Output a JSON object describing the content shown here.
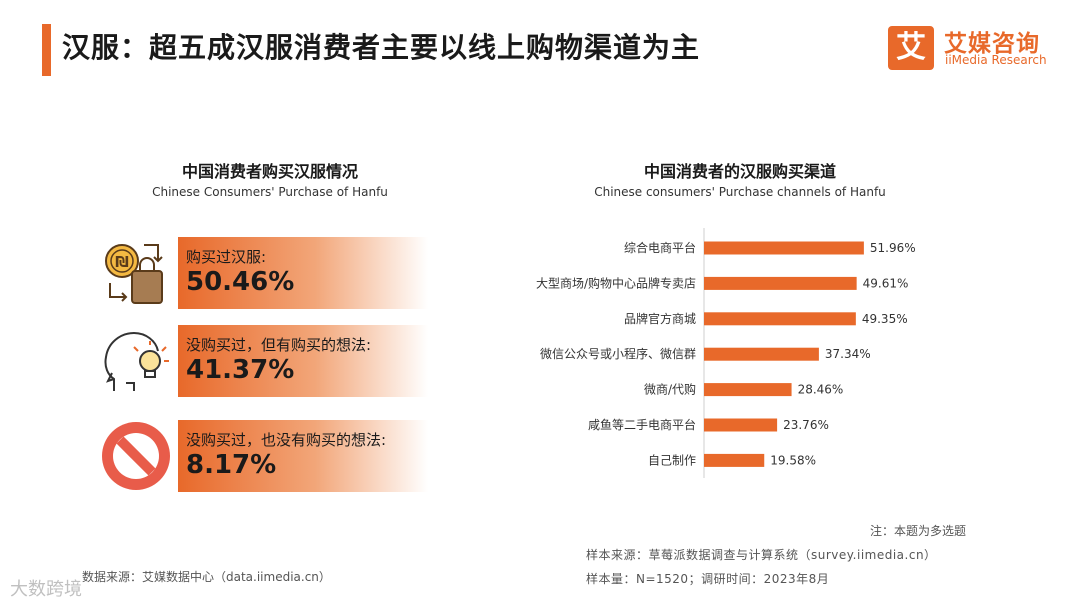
{
  "page": {
    "title": "汉服：超五成汉服消费者主要以线上购物渠道为主"
  },
  "logo": {
    "mark": "艾",
    "cn": "艾媒咨询",
    "en": "iiMedia Research"
  },
  "left_panel": {
    "title": "中国消费者购买汉服情况",
    "subtitle": "Chinese Consumers' Purchase of Hanfu",
    "stats": [
      {
        "label": "购买过汉服:",
        "value": "50.46%",
        "icon": "coin-shopping-bag-icon"
      },
      {
        "label": "没购买过，但有购买的想法:",
        "value": "41.37%",
        "icon": "head-lightbulb-icon"
      },
      {
        "label": "没购买过，也没有购买的想法:",
        "value": "8.17%",
        "icon": "prohibited-icon"
      }
    ]
  },
  "right_panel": {
    "title": "中国消费者的汉服购买渠道",
    "subtitle": "Chinese consumers' Purchase channels of Hanfu"
  },
  "chart_data": {
    "type": "bar",
    "orientation": "horizontal",
    "title": "中国消费者的汉服购买渠道",
    "categories": [
      "综合电商平台",
      "大型商场/购物中心品牌专卖店",
      "品牌官方商城",
      "微信公众号或小程序、微信群",
      "微商/代购",
      "咸鱼等二手电商平台",
      "自己制作"
    ],
    "values": [
      51.96,
      49.61,
      49.35,
      37.34,
      28.46,
      23.76,
      19.58
    ],
    "value_labels": [
      "51.96%",
      "49.61%",
      "49.35%",
      "37.34%",
      "28.46%",
      "23.76%",
      "19.58%"
    ],
    "unit": "%",
    "color": "#e8692a",
    "grid": false
  },
  "notes": {
    "note": "注：本题为多选题",
    "source": "样本来源：草莓派数据调查与计算系统（survey.iimedia.cn）",
    "sample": "样本量：N=1520；调研时间：2023年8月",
    "data_source": "数据来源：艾媒数据中心（data.iimedia.cn）"
  },
  "watermark": "大数跨境"
}
